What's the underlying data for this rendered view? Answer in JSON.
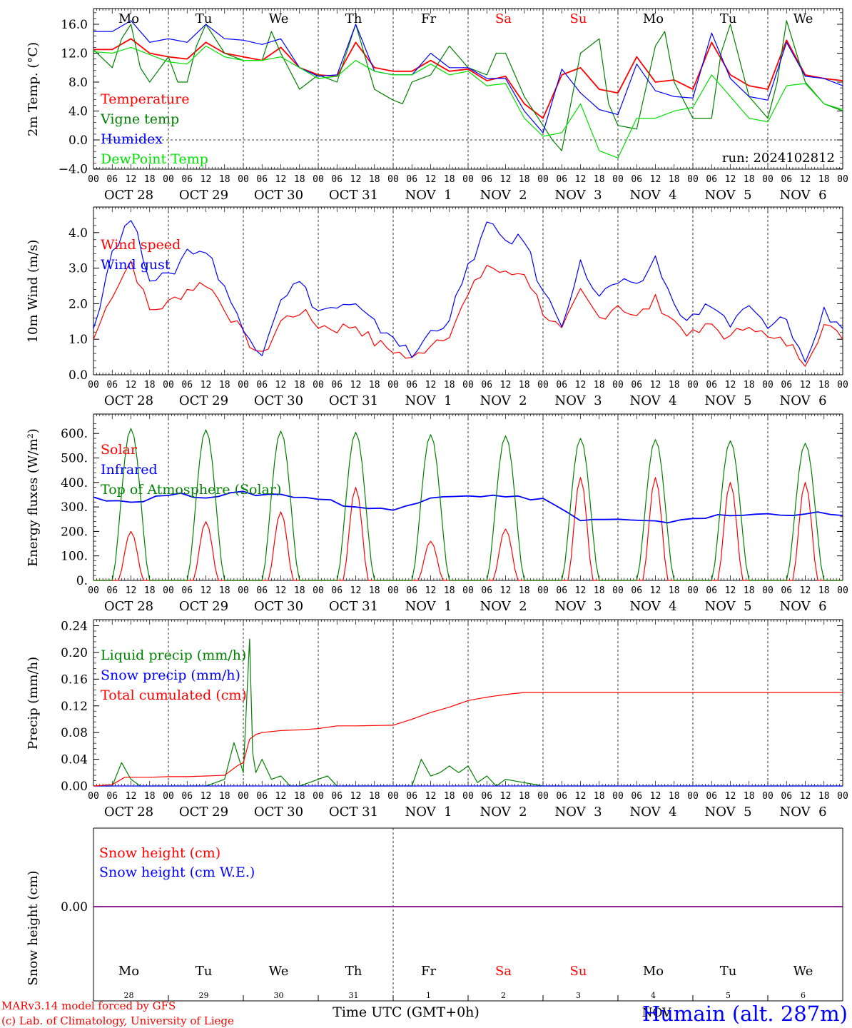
{
  "footer": {
    "model": "MARv3.14 model forced by GFS",
    "credit": "(c) Lab. of Climatology, University of Liege",
    "xlabel": "Time UTC (GMT+0h)",
    "location": "Humain (alt. 287m)",
    "month": "NOV"
  },
  "days": [
    "Mo",
    "Tu",
    "We",
    "Th",
    "Fr",
    "Sa",
    "Su",
    "Mo",
    "Tu",
    "We"
  ],
  "weekend_days": [
    "Sa",
    "Su"
  ],
  "day_numbers": [
    "28",
    "29",
    "30",
    "31",
    "1",
    "2",
    "3",
    "4",
    "5",
    "6"
  ],
  "dates": [
    "OCT 28",
    "OCT 29",
    "OCT 30",
    "OCT 31",
    "NOV  1",
    "NOV  2",
    "NOV  3",
    "NOV  4",
    "NOV  5",
    "NOV  6"
  ],
  "hour_ticks": [
    "00",
    "06",
    "12",
    "18"
  ],
  "colors": {
    "red": "#ff0000",
    "green": "#008000",
    "blue": "#0000ff",
    "lightgreen": "#00e000",
    "purple": "#800080"
  },
  "chart_data": [
    {
      "type": "line",
      "ylabel": "2m Temp. (°C)",
      "ylim": [
        -4,
        18
      ],
      "yticks": [
        "16.0",
        "12.0",
        "8.0",
        "4.0",
        "0.0",
        "−4.0"
      ],
      "annotation": "run: 2024102812",
      "x_unit": "hours since OCT 28 00 UTC",
      "series": [
        {
          "name": "Temperature",
          "color": "red",
          "x": [
            0,
            6,
            12,
            18,
            24,
            30,
            36,
            42,
            48,
            54,
            60,
            66,
            72,
            78,
            84,
            90,
            96,
            102,
            108,
            114,
            120,
            126,
            132,
            138,
            144,
            150,
            156,
            162,
            168,
            174,
            180,
            186,
            192,
            198,
            204,
            210,
            216,
            222,
            228,
            234,
            240
          ],
          "y": [
            12.5,
            12.5,
            14,
            12,
            11.5,
            11.2,
            13.5,
            12,
            11.5,
            11,
            12.8,
            10,
            9,
            8.8,
            13.5,
            10,
            9.5,
            9.5,
            11,
            9.5,
            9.8,
            8.2,
            8.8,
            5,
            3,
            9,
            10,
            7,
            6.5,
            11.5,
            8,
            8.3,
            7,
            13.5,
            9,
            7.5,
            7,
            13.8,
            9,
            8.5,
            8.2
          ]
        },
        {
          "name": "Vigne temp",
          "color": "green",
          "x": [
            0,
            6,
            9,
            12,
            15,
            18,
            24,
            27,
            30,
            33,
            36,
            42,
            48,
            54,
            57,
            60,
            66,
            72,
            78,
            81,
            84,
            90,
            96,
            99,
            102,
            108,
            114,
            120,
            126,
            129,
            132,
            138,
            144,
            147,
            150,
            156,
            162,
            165,
            168,
            174,
            180,
            183,
            186,
            192,
            198,
            201,
            204,
            210,
            216,
            219,
            222,
            228,
            234,
            240
          ],
          "y": [
            12.5,
            10,
            14,
            16,
            10,
            8,
            11.5,
            8,
            8,
            13,
            16,
            12,
            11,
            11,
            15,
            12,
            7,
            9,
            8,
            12,
            16,
            7,
            5.5,
            5,
            8,
            9,
            13,
            10,
            9,
            12,
            12,
            6,
            2,
            0,
            -1.5,
            12,
            14,
            5,
            2,
            1.5,
            13,
            15,
            8,
            3,
            3,
            12,
            16,
            6,
            3,
            8,
            16.5,
            8,
            5,
            4
          ]
        },
        {
          "name": "Humidex",
          "color": "blue",
          "x": [
            0,
            6,
            12,
            18,
            24,
            30,
            36,
            42,
            48,
            54,
            60,
            66,
            72,
            78,
            84,
            90,
            96,
            102,
            108,
            114,
            120,
            126,
            132,
            138,
            144,
            150,
            156,
            162,
            168,
            174,
            180,
            186,
            192,
            198,
            204,
            210,
            216,
            222,
            228,
            234,
            240
          ],
          "y": [
            15,
            15,
            16.5,
            13.5,
            14,
            13.5,
            16,
            14,
            13.8,
            13.2,
            14,
            10,
            8.8,
            9,
            16,
            9.5,
            9,
            9,
            12,
            10,
            10,
            8.5,
            8.5,
            4,
            1,
            9.8,
            6.5,
            4.2,
            3.5,
            10.5,
            6.8,
            6,
            5.8,
            14.8,
            8.5,
            6,
            5.5,
            13.5,
            8.8,
            8.5,
            7.5
          ]
        },
        {
          "name": "DewPoint Temp",
          "color": "lightgreen",
          "x": [
            0,
            6,
            12,
            18,
            24,
            30,
            36,
            42,
            48,
            54,
            60,
            66,
            72,
            78,
            84,
            90,
            96,
            102,
            108,
            114,
            120,
            126,
            132,
            138,
            144,
            150,
            156,
            162,
            168,
            174,
            180,
            186,
            192,
            198,
            204,
            210,
            216,
            222,
            228,
            234,
            240
          ],
          "y": [
            12.2,
            12,
            12.8,
            11.8,
            10.8,
            10.5,
            13,
            11.5,
            11,
            11,
            11.5,
            10,
            8.5,
            8.8,
            11,
            9.5,
            9,
            9,
            10.5,
            9,
            9.5,
            7.5,
            7.8,
            3,
            0.5,
            1,
            5,
            -1.5,
            -2.5,
            3,
            3,
            4,
            4.5,
            9,
            6,
            3,
            2.5,
            7.5,
            7.8,
            5,
            4.2
          ]
        }
      ]
    },
    {
      "type": "line",
      "ylabel": "10m Wind (m/s)",
      "ylim": [
        0,
        4.5
      ],
      "yticks": [
        "4.0",
        "3.0",
        "2.0",
        "1.0",
        "0.0"
      ],
      "x_unit": "hours since OCT 28 00 UTC",
      "series": [
        {
          "name": "Wind speed",
          "color": "red",
          "x": [
            0,
            6,
            12,
            18,
            24,
            30,
            36,
            42,
            48,
            54,
            60,
            66,
            72,
            78,
            84,
            90,
            96,
            102,
            108,
            114,
            120,
            126,
            132,
            138,
            144,
            150,
            156,
            162,
            168,
            174,
            180,
            186,
            192,
            198,
            204,
            210,
            216,
            222,
            228,
            234,
            240
          ],
          "y": [
            1,
            2.3,
            3.2,
            1.8,
            2,
            2.4,
            2.6,
            1.9,
            1.1,
            0.5,
            1.5,
            1.8,
            1.4,
            1.3,
            1.4,
            0.9,
            0.7,
            0.4,
            0.9,
            1.2,
            2.2,
            3.1,
            2.8,
            2.9,
            1.8,
            1.2,
            2.3,
            1.6,
            2,
            1.6,
            2.1,
            1.5,
            1.1,
            1.4,
            1,
            1.5,
            1,
            0.9,
            0.4,
            1.4,
            1
          ]
        },
        {
          "name": "Wind gust",
          "color": "blue",
          "x": [
            0,
            6,
            12,
            18,
            24,
            30,
            36,
            42,
            48,
            54,
            60,
            66,
            72,
            78,
            84,
            90,
            96,
            102,
            108,
            114,
            120,
            126,
            132,
            138,
            144,
            150,
            156,
            162,
            168,
            174,
            180,
            186,
            192,
            198,
            204,
            210,
            216,
            222,
            228,
            234,
            240
          ],
          "y": [
            1.3,
            3.5,
            4.4,
            2.8,
            2.7,
            3.5,
            3.5,
            2.5,
            1.2,
            0.7,
            2.2,
            2.6,
            1.8,
            1.9,
            1.9,
            1.4,
            1.1,
            0.5,
            1.2,
            1.6,
            3,
            4.2,
            3.8,
            3.8,
            2.3,
            1.5,
            3.1,
            2.2,
            2.6,
            2.4,
            3.3,
            1.9,
            1.6,
            2,
            1.4,
            1.9,
            1.3,
            1.6,
            0.3,
            1.8,
            1.3
          ]
        }
      ]
    },
    {
      "type": "line",
      "ylabel": "Energy fluxes (W/m²)",
      "ylim": [
        0,
        650
      ],
      "yticks": [
        "600.",
        "500.",
        "400.",
        "300.",
        "200.",
        "100.",
        "0."
      ],
      "x_unit": "hours since OCT 28 00 UTC",
      "series": [
        {
          "name": "Solar",
          "color": "red",
          "peaks": [
            200,
            240,
            280,
            380,
            160,
            210,
            420,
            420,
            400,
            400
          ]
        },
        {
          "name": "Infrared",
          "color": "blue",
          "x": [
            0,
            12,
            24,
            36,
            48,
            60,
            72,
            84,
            96,
            108,
            120,
            132,
            144,
            156,
            168,
            180,
            192,
            204,
            216,
            228,
            240
          ],
          "y": [
            340,
            320,
            350,
            345,
            355,
            350,
            335,
            300,
            285,
            345,
            350,
            340,
            335,
            245,
            245,
            235,
            255,
            265,
            270,
            275,
            265
          ]
        },
        {
          "name": "Top of Atmosphere (Solar)",
          "color": "green",
          "peaks": [
            620,
            615,
            610,
            605,
            595,
            590,
            580,
            575,
            570,
            560
          ]
        }
      ]
    },
    {
      "type": "line",
      "ylabel": "Precip (mm/h)",
      "ylim": [
        0,
        0.24
      ],
      "yticks": [
        "0.24",
        "0.20",
        "0.16",
        "0.12",
        "0.08",
        "0.04",
        "0.00"
      ],
      "x_unit": "hours since OCT 28 00 UTC",
      "series": [
        {
          "name": "Liquid precip (mm/h)",
          "color": "green",
          "x": [
            0,
            6,
            9,
            12,
            15,
            18,
            24,
            30,
            36,
            42,
            45,
            48,
            50,
            51,
            52,
            54,
            57,
            60,
            63,
            66,
            72,
            75,
            78,
            84,
            96,
            102,
            105,
            108,
            111,
            114,
            117,
            120,
            123,
            126,
            129,
            132,
            138,
            144,
            150,
            240
          ],
          "y": [
            0,
            0,
            0.035,
            0.01,
            0,
            0,
            0,
            0,
            0,
            0.01,
            0.065,
            0.02,
            0.22,
            0.05,
            0.02,
            0.04,
            0.01,
            0.015,
            0,
            0,
            0.01,
            0.015,
            0,
            0,
            0,
            0,
            0.04,
            0.015,
            0.02,
            0.03,
            0.02,
            0.03,
            0.005,
            0.015,
            0,
            0.01,
            0.005,
            0,
            0,
            0
          ]
        },
        {
          "name": "Snow precip (mm/h)",
          "color": "blue",
          "x": [
            0,
            240
          ],
          "y": [
            0,
            0
          ]
        },
        {
          "name": "Total cumulated (cm)",
          "color": "red",
          "x": [
            0,
            6,
            10,
            18,
            24,
            30,
            36,
            42,
            46,
            48,
            50,
            52,
            54,
            60,
            66,
            72,
            78,
            84,
            96,
            102,
            108,
            114,
            120,
            126,
            132,
            138,
            144,
            150,
            156,
            240
          ],
          "y": [
            0,
            0.002,
            0.013,
            0.013,
            0.014,
            0.014,
            0.015,
            0.016,
            0.03,
            0.035,
            0.07,
            0.077,
            0.08,
            0.083,
            0.084,
            0.086,
            0.09,
            0.09,
            0.091,
            0.1,
            0.11,
            0.118,
            0.128,
            0.133,
            0.137,
            0.14,
            0.14,
            0.14,
            0.14,
            0.14
          ]
        }
      ]
    },
    {
      "type": "line",
      "ylabel": "Snow height (cm)",
      "ylim": [
        -1,
        1
      ],
      "yticks": [
        "0.00"
      ],
      "x_unit": "hours since OCT 28 00 UTC",
      "series": [
        {
          "name": "Snow height (cm)",
          "color": "red",
          "x": [
            0,
            240
          ],
          "y": [
            0,
            0
          ]
        },
        {
          "name": "Snow height (cm W.E.)",
          "color": "blue",
          "x": [
            0,
            240
          ],
          "y": [
            0,
            0
          ]
        }
      ]
    }
  ]
}
